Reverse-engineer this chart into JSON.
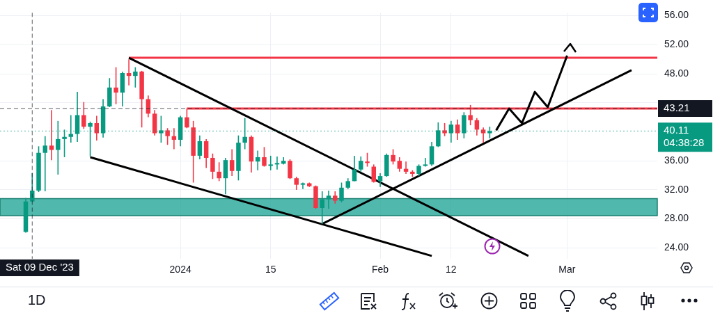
{
  "chart_data": {
    "type": "candlestick",
    "subtitle": "1D",
    "x": [
      "2023-12-08",
      "2023-12-09",
      "2023-12-10",
      "2023-12-11",
      "2023-12-12",
      "2023-12-13",
      "2023-12-14",
      "2023-12-15",
      "2023-12-16",
      "2023-12-17",
      "2023-12-18",
      "2023-12-19",
      "2023-12-20",
      "2023-12-21",
      "2023-12-22",
      "2023-12-23",
      "2023-12-24",
      "2023-12-25",
      "2023-12-26",
      "2023-12-27",
      "2023-12-28",
      "2023-12-29",
      "2023-12-30",
      "2023-12-31",
      "2024-01-01",
      "2024-01-02",
      "2024-01-03",
      "2024-01-04",
      "2024-01-05",
      "2024-01-06",
      "2024-01-07",
      "2024-01-08",
      "2024-01-09",
      "2024-01-10",
      "2024-01-11",
      "2024-01-12",
      "2024-01-13",
      "2024-01-14",
      "2024-01-15",
      "2024-01-16",
      "2024-01-17",
      "2024-01-18",
      "2024-01-19",
      "2024-01-20",
      "2024-01-21",
      "2024-01-22",
      "2024-01-23",
      "2024-01-24",
      "2024-01-25",
      "2024-01-26",
      "2024-01-27",
      "2024-01-28",
      "2024-01-29",
      "2024-01-30",
      "2024-01-31",
      "2024-02-01",
      "2024-02-02",
      "2024-02-03",
      "2024-02-04",
      "2024-02-05",
      "2024-02-06",
      "2024-02-07",
      "2024-02-08",
      "2024-02-09",
      "2024-02-10",
      "2024-02-11",
      "2024-02-12",
      "2024-02-13",
      "2024-02-14",
      "2024-02-15",
      "2024-02-16",
      "2024-02-17",
      "2024-02-18"
    ],
    "ohlc": [
      [
        26.2,
        30.9,
        26.1,
        30.4
      ],
      [
        30.4,
        34.3,
        30.4,
        31.9
      ],
      [
        31.9,
        38.0,
        31.7,
        37.1
      ],
      [
        37.1,
        39.4,
        31.8,
        38.1
      ],
      [
        38.1,
        43.0,
        36.1,
        37.5
      ],
      [
        37.5,
        41.5,
        34.1,
        39.0
      ],
      [
        39.0,
        40.3,
        36.5,
        39.3
      ],
      [
        39.3,
        42.3,
        38.5,
        39.7
      ],
      [
        39.7,
        45.5,
        38.6,
        42.3
      ],
      [
        42.3,
        44.1,
        40.4,
        40.7
      ],
      [
        40.7,
        41.4,
        36.6,
        41.2
      ],
      [
        41.2,
        42.2,
        38.8,
        39.8
      ],
      [
        39.8,
        44.5,
        39.2,
        43.5
      ],
      [
        43.5,
        47.4,
        43.4,
        46.1
      ],
      [
        46.1,
        48.9,
        43.8,
        45.4
      ],
      [
        45.4,
        48.3,
        43.5,
        48.1
      ],
      [
        48.1,
        50.0,
        46.4,
        47.7
      ],
      [
        47.7,
        48.9,
        46.1,
        48.3
      ],
      [
        48.3,
        48.4,
        40.6,
        44.5
      ],
      [
        44.5,
        45.0,
        42.0,
        42.5
      ],
      [
        42.5,
        43.0,
        39.5,
        39.8
      ],
      [
        39.8,
        42.2,
        38.5,
        40.2
      ],
      [
        40.2,
        40.5,
        38.2,
        39.4
      ],
      [
        39.4,
        40.5,
        37.6,
        38.9
      ],
      [
        38.9,
        42.2,
        38.0,
        42.0
      ],
      [
        42.0,
        43.2,
        40.5,
        40.6
      ],
      [
        40.6,
        41.5,
        33.0,
        36.7
      ],
      [
        36.7,
        39.5,
        36.2,
        38.7
      ],
      [
        38.7,
        39.0,
        35.0,
        36.4
      ],
      [
        36.4,
        37.0,
        33.5,
        34.5
      ],
      [
        34.5,
        35.8,
        33.2,
        33.6
      ],
      [
        33.6,
        36.4,
        31.4,
        36.1
      ],
      [
        36.1,
        37.6,
        33.9,
        34.6
      ],
      [
        34.6,
        39.5,
        33.3,
        38.5
      ],
      [
        38.5,
        41.9,
        37.6,
        39.3
      ],
      [
        39.3,
        39.5,
        34.4,
        35.9
      ],
      [
        35.9,
        37.4,
        34.7,
        36.5
      ],
      [
        36.5,
        37.9,
        35.2,
        35.3
      ],
      [
        35.3,
        36.7,
        34.7,
        35.5
      ],
      [
        35.5,
        36.6,
        34.8,
        35.7
      ],
      [
        35.6,
        36.5,
        35.5,
        36.0
      ],
      [
        36.0,
        36.2,
        33.5,
        33.6
      ],
      [
        33.6,
        33.8,
        32.0,
        32.7
      ],
      [
        32.7,
        33.0,
        32.1,
        32.9
      ],
      [
        32.9,
        33.0,
        32.4,
        32.5
      ],
      [
        32.5,
        32.6,
        29.4,
        29.5
      ],
      [
        29.5,
        31.8,
        27.3,
        30.7
      ],
      [
        30.7,
        31.9,
        29.4,
        31.2
      ],
      [
        31.2,
        31.8,
        30.1,
        30.5
      ],
      [
        30.5,
        33.0,
        30.3,
        32.3
      ],
      [
        32.3,
        33.6,
        32.1,
        33.2
      ],
      [
        33.2,
        36.7,
        33.2,
        34.8
      ],
      [
        34.8,
        36.6,
        34.5,
        36.0
      ],
      [
        35.9,
        37.1,
        35.2,
        35.7
      ],
      [
        35.2,
        35.5,
        33.0,
        33.1
      ],
      [
        33.2,
        34.3,
        32.4,
        33.9
      ],
      [
        33.9,
        37.0,
        33.8,
        36.8
      ],
      [
        36.8,
        37.6,
        35.5,
        35.9
      ],
      [
        36.0,
        36.5,
        34.5,
        34.9
      ],
      [
        34.9,
        35.9,
        34.2,
        34.5
      ],
      [
        34.5,
        34.7,
        33.8,
        34.2
      ],
      [
        34.2,
        35.5,
        33.9,
        35.3
      ],
      [
        35.3,
        36.4,
        35.2,
        35.5
      ],
      [
        35.5,
        38.6,
        35.3,
        38.0
      ],
      [
        38.0,
        41.3,
        37.9,
        40.2
      ],
      [
        40.2,
        41.2,
        39.4,
        39.8
      ],
      [
        39.8,
        41.5,
        38.5,
        41.0
      ],
      [
        41.0,
        41.7,
        38.9,
        39.8
      ],
      [
        39.8,
        42.7,
        39.1,
        42.3
      ],
      [
        42.3,
        43.7,
        40.9,
        41.6
      ],
      [
        41.6,
        41.9,
        39.5,
        40.3
      ],
      [
        40.3,
        40.6,
        38.5,
        39.8
      ],
      [
        39.8,
        40.7,
        39.1,
        40.11
      ]
    ],
    "series": [
      {
        "type": "line",
        "color": "#000000",
        "x": [
          "2023-12-24",
          "2024-02-24"
        ],
        "values": [
          50.2,
          22.9
        ]
      },
      {
        "type": "line",
        "color": "#000000",
        "x": [
          "2023-12-18",
          "2024-02-09"
        ],
        "values": [
          36.5,
          22.9
        ]
      },
      {
        "type": "line",
        "color": "#000000",
        "x": [
          "2024-01-23",
          "2024-03-11"
        ],
        "values": [
          27.3,
          48.5
        ]
      },
      {
        "type": "line",
        "color": "#000000",
        "x": [
          "2024-02-19",
          "2024-02-21",
          "2024-02-23",
          "2024-02-25",
          "2024-02-27",
          "2024-03-01"
        ],
        "values": [
          40.2,
          43.2,
          41.2,
          45.5,
          43.4,
          50.5
        ]
      },
      {
        "type": "line",
        "color": "#f23645",
        "x": [
          "2023-12-24",
          "2024-03-15"
        ],
        "values": [
          50.2,
          50.2
        ]
      },
      {
        "type": "line",
        "color": "#f23645",
        "x": [
          "2024-01-02",
          "2024-03-15"
        ],
        "values": [
          43.2,
          43.2
        ]
      }
    ],
    "bands": [
      {
        "axis": "y",
        "from": 28.45,
        "to": 30.8,
        "color": "#26a69a"
      }
    ],
    "ref_lines": [
      {
        "axis": "x",
        "value": "2023-12-09",
        "label": "Sat 09 Dec '23",
        "color": "#131722",
        "line_style": "dashed"
      },
      {
        "axis": "y",
        "value": 43.21,
        "label": "43.21",
        "color": "#131722",
        "line_style": "dashed"
      },
      {
        "axis": "y",
        "value": 40.11,
        "label": "40.11\n04:38:28",
        "color": "#089981",
        "line_style": "dotted"
      }
    ],
    "xlim": [
      "2023-12-04",
      "2024-03-15"
    ],
    "xticks": [
      {
        "value": "2024-01-01",
        "label": "2024"
      },
      {
        "value": "2024-01-15",
        "label": "15"
      },
      {
        "value": "2024-02-01",
        "label": "Feb"
      },
      {
        "value": "2024-02-12",
        "label": "12"
      },
      {
        "value": "2024-03-01",
        "label": "Mar"
      }
    ],
    "ylim": [
      22.5,
      56.4
    ],
    "yticks": [
      {
        "value": 24,
        "label": "24.00"
      },
      {
        "value": 28,
        "label": "28.00"
      },
      {
        "value": 32,
        "label": "32.00"
      },
      {
        "value": 36,
        "label": "36.00"
      },
      {
        "value": 44,
        "label": null
      },
      {
        "value": 48,
        "label": "48.00"
      },
      {
        "value": 52,
        "label": "52.00"
      },
      {
        "value": 56,
        "label": "56.00"
      }
    ],
    "grid": true
  }
}
